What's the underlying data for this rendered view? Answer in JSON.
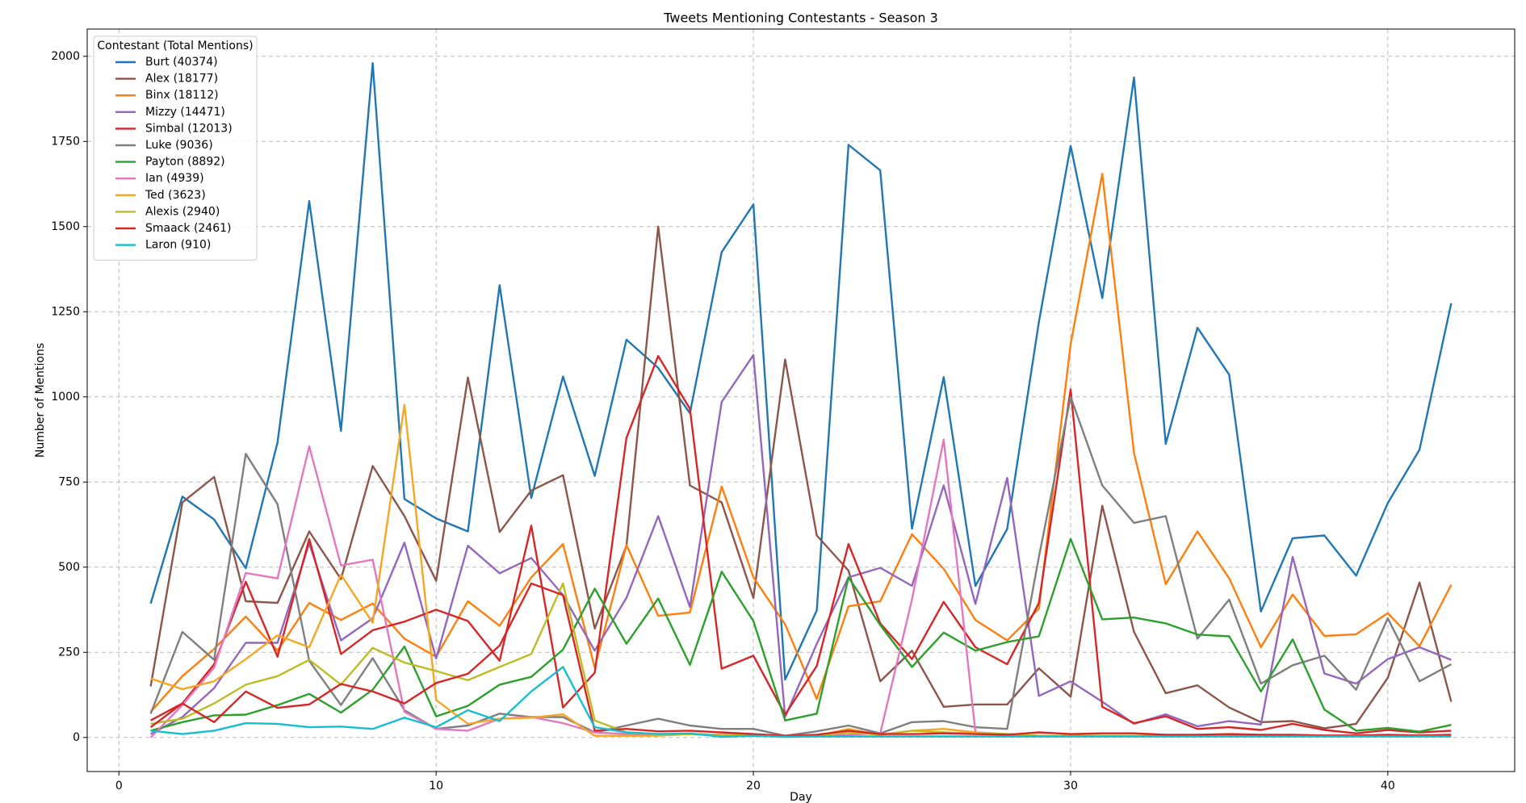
{
  "chart_data": {
    "type": "line",
    "title": "Tweets Mentioning Contestants - Season 3",
    "x_label": "Day",
    "y_label": "Number of Mentions",
    "legend_title": "Contestant (Total Mentions)",
    "legend_position": "upper left",
    "grid": true,
    "x": [
      1,
      2,
      3,
      4,
      5,
      6,
      7,
      8,
      9,
      10,
      11,
      12,
      13,
      14,
      15,
      16,
      17,
      18,
      19,
      20,
      21,
      22,
      23,
      24,
      25,
      26,
      27,
      28,
      29,
      30,
      31,
      32,
      33,
      34,
      35,
      36,
      37,
      38,
      39,
      40,
      41,
      42
    ],
    "xlim": [
      -1,
      44
    ],
    "xticks": [
      0,
      10,
      20,
      30,
      40
    ],
    "ylim": [
      -100,
      2080
    ],
    "yticks": [
      0,
      250,
      500,
      750,
      1000,
      1250,
      1500,
      1750,
      2000
    ],
    "series": [
      {
        "name": "Burt (40374)",
        "color": "#1f77b4",
        "values": [
          393,
          707,
          640,
          497,
          866,
          1575,
          900,
          1980,
          700,
          643,
          605,
          1328,
          703,
          1060,
          768,
          1168,
          1085,
          952,
          1425,
          1565,
          170,
          373,
          1740,
          1665,
          613,
          1058,
          445,
          612,
          1220,
          1737,
          1290,
          1938,
          862,
          1203,
          1065,
          370,
          585,
          593,
          475,
          688,
          845,
          1275
        ]
      },
      {
        "name": "Alex (18177)",
        "color": "#8c564b",
        "values": [
          150,
          690,
          765,
          400,
          395,
          605,
          465,
          797,
          650,
          460,
          1057,
          603,
          725,
          770,
          320,
          563,
          1500,
          740,
          690,
          410,
          1110,
          593,
          490,
          165,
          255,
          90,
          97,
          97,
          203,
          120,
          680,
          310,
          130,
          153,
          88,
          45,
          48,
          27,
          40,
          175,
          455,
          105
        ]
      },
      {
        "name": "Binx (18112)",
        "color": "#ff7f0e",
        "values": [
          75,
          180,
          260,
          355,
          255,
          395,
          345,
          393,
          290,
          237,
          400,
          328,
          470,
          568,
          205,
          565,
          357,
          367,
          737,
          470,
          332,
          113,
          385,
          400,
          597,
          495,
          345,
          285,
          378,
          1155,
          1655,
          835,
          450,
          605,
          467,
          265,
          420,
          298,
          303,
          365,
          268,
          448
        ]
      },
      {
        "name": "Mizzy (14471)",
        "color": "#9467bd",
        "values": [
          10,
          60,
          145,
          278,
          278,
          570,
          285,
          350,
          572,
          232,
          563,
          482,
          527,
          418,
          255,
          410,
          650,
          383,
          985,
          1123,
          60,
          275,
          470,
          498,
          445,
          740,
          392,
          762,
          122,
          165,
          105,
          40,
          68,
          33,
          48,
          38,
          530,
          188,
          158,
          230,
          265,
          228
        ]
      },
      {
        "name": "Simbal (12013)",
        "color": "#d62728",
        "values": [
          50,
          100,
          215,
          457,
          237,
          583,
          245,
          315,
          340,
          375,
          342,
          225,
          622,
          88,
          190,
          880,
          1120,
          965,
          202,
          240,
          67,
          210,
          568,
          335,
          230,
          398,
          265,
          215,
          395,
          1022,
          90,
          42,
          62,
          25,
          30,
          22,
          40,
          22,
          12,
          22,
          15,
          20
        ]
      },
      {
        "name": "Luke (9036)",
        "color": "#7f7f7f",
        "values": [
          70,
          310,
          228,
          833,
          685,
          225,
          95,
          233,
          80,
          25,
          35,
          70,
          60,
          60,
          15,
          35,
          55,
          35,
          25,
          25,
          5,
          18,
          35,
          12,
          45,
          48,
          30,
          25,
          530,
          1000,
          740,
          630,
          650,
          290,
          405,
          158,
          212,
          240,
          140,
          350,
          165,
          215
        ]
      },
      {
        "name": "Payton (8892)",
        "color": "#2ca02c",
        "values": [
          20,
          45,
          65,
          67,
          95,
          128,
          73,
          140,
          267,
          62,
          93,
          155,
          178,
          258,
          437,
          275,
          408,
          213,
          487,
          342,
          50,
          70,
          470,
          330,
          207,
          308,
          255,
          280,
          297,
          583,
          347,
          352,
          335,
          302,
          297,
          135,
          288,
          82,
          20,
          28,
          17,
          37
        ]
      },
      {
        "name": "Ian (4939)",
        "color": "#e377c2",
        "values": [
          0,
          95,
          205,
          483,
          467,
          855,
          505,
          522,
          75,
          25,
          20,
          55,
          60,
          42,
          15,
          10,
          8,
          10,
          8,
          8,
          5,
          5,
          8,
          12,
          405,
          875,
          15,
          10,
          5,
          5,
          5,
          5,
          5,
          5,
          5,
          5,
          5,
          5,
          5,
          5,
          5,
          5
        ]
      },
      {
        "name": "Ted (3623)",
        "color": "#f5a623",
        "values": [
          173,
          142,
          165,
          230,
          300,
          265,
          478,
          337,
          977,
          110,
          40,
          55,
          58,
          68,
          5,
          5,
          5,
          10,
          5,
          5,
          2,
          5,
          25,
          8,
          20,
          25,
          15,
          8,
          5,
          5,
          5,
          5,
          5,
          5,
          5,
          5,
          5,
          5,
          5,
          5,
          5,
          5
        ]
      },
      {
        "name": "Alexis (2940)",
        "color": "#bcbd22",
        "values": [
          40,
          55,
          100,
          155,
          180,
          228,
          155,
          263,
          220,
          195,
          168,
          207,
          245,
          452,
          50,
          15,
          10,
          10,
          8,
          5,
          3,
          5,
          15,
          8,
          20,
          15,
          12,
          10,
          5,
          5,
          5,
          5,
          5,
          5,
          5,
          5,
          5,
          5,
          5,
          5,
          5,
          5
        ]
      },
      {
        "name": "Smaack (2461)",
        "color": "#d62728",
        "values": [
          30,
          100,
          45,
          135,
          87,
          97,
          157,
          135,
          100,
          160,
          187,
          270,
          452,
          418,
          20,
          25,
          18,
          20,
          15,
          10,
          5,
          8,
          20,
          10,
          10,
          12,
          10,
          8,
          15,
          10,
          12,
          12,
          8,
          8,
          10,
          8,
          8,
          6,
          6,
          8,
          6,
          8
        ]
      },
      {
        "name": "Laron (910)",
        "color": "#17becf",
        "values": [
          20,
          10,
          20,
          42,
          40,
          30,
          32,
          25,
          58,
          30,
          80,
          48,
          135,
          207,
          30,
          15,
          10,
          12,
          2,
          5,
          2,
          3,
          3,
          3,
          3,
          3,
          3,
          3,
          3,
          3,
          3,
          3,
          3,
          3,
          3,
          3,
          3,
          3,
          3,
          3,
          3,
          3
        ]
      }
    ]
  }
}
